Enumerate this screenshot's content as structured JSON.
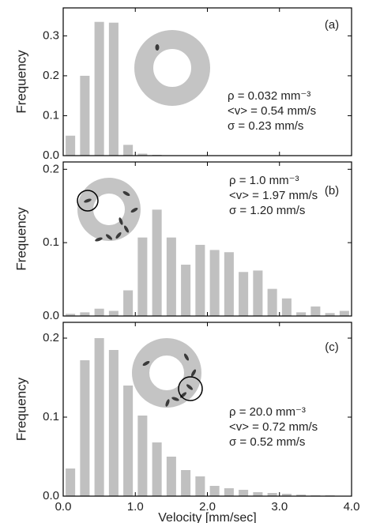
{
  "chart_data": [
    {
      "type": "histogram",
      "panel_label": "(a)",
      "ylabel": "Frequency",
      "annotations": [
        "ρ = 0.032  mm⁻³",
        "<v> = 0.54 mm/s",
        "σ = 0.23 mm/s"
      ],
      "bins": [
        0,
        0.2,
        0.4,
        0.6,
        0.8,
        1.0,
        1.2,
        1.4,
        1.6,
        1.8,
        2.0,
        2.2,
        2.4,
        2.6,
        2.8,
        3.0,
        3.2,
        3.4,
        3.6,
        3.8,
        4.0
      ],
      "values": [
        0.05,
        0.2,
        0.335,
        0.333,
        0.027,
        0.005,
        0.002,
        0,
        0,
        0,
        0,
        0,
        0,
        0,
        0,
        0,
        0,
        0,
        0,
        0
      ],
      "color": "#c0c0c0",
      "xlim": [
        0,
        4.0
      ],
      "xticks": [
        {
          "value": 0,
          "label": "0.0"
        },
        {
          "value": 1,
          "label": "1.0"
        },
        {
          "value": 2,
          "label": "2.0"
        },
        {
          "value": 3,
          "label": "3.0"
        },
        {
          "value": 4,
          "label": "4.0"
        }
      ],
      "ylim": [
        0,
        0.37
      ],
      "yticks": [
        {
          "value": 0,
          "label": "0.0"
        },
        0.1,
        0.2,
        0.3
      ]
    },
    {
      "type": "histogram",
      "panel_label": "(b)",
      "ylabel": "Frequency",
      "annotations": [
        "ρ = 1.0  mm⁻³",
        "<v> = 1.97 mm/s",
        "σ = 1.20 mm/s"
      ],
      "bins": [
        0,
        0.2,
        0.4,
        0.6,
        0.8,
        1.0,
        1.2,
        1.4,
        1.6,
        1.8,
        2.0,
        2.2,
        2.4,
        2.6,
        2.8,
        3.0,
        3.2,
        3.4,
        3.6,
        3.8,
        4.0
      ],
      "values": [
        0.003,
        0.005,
        0.01,
        0.007,
        0.035,
        0.107,
        0.145,
        0.107,
        0.07,
        0.097,
        0.09,
        0.087,
        0.06,
        0.062,
        0.037,
        0.024,
        0.005,
        0.013,
        0.004,
        0.007
      ],
      "color": "#c0c0c0",
      "xlim": [
        0,
        4.0
      ],
      "xticks": [
        {
          "value": 0,
          "label": "0.0"
        },
        {
          "value": 1,
          "label": "1.0"
        },
        {
          "value": 2,
          "label": "2.0"
        },
        {
          "value": 3,
          "label": "3.0"
        },
        {
          "value": 4,
          "label": "4.0"
        }
      ],
      "ylim": [
        0,
        0.21
      ],
      "yticks": [
        {
          "value": 0,
          "label": "0.0"
        },
        0.1,
        0.2
      ]
    },
    {
      "type": "histogram",
      "panel_label": "(c)",
      "ylabel": "Frequency",
      "xlabel": "Velocity [mm/sec]",
      "annotations": [
        "ρ = 20.0  mm⁻³",
        "<v> = 0.72 mm/s",
        "σ = 0.52 mm/s"
      ],
      "bins": [
        0,
        0.2,
        0.4,
        0.6,
        0.8,
        1.0,
        1.2,
        1.4,
        1.6,
        1.8,
        2.0,
        2.2,
        2.4,
        2.6,
        2.8,
        3.0,
        3.2,
        3.4,
        3.6,
        3.8,
        4.0
      ],
      "values": [
        0.035,
        0.172,
        0.2,
        0.185,
        0.14,
        0.102,
        0.068,
        0.05,
        0.033,
        0.025,
        0.013,
        0.01,
        0.008,
        0.005,
        0.004,
        0.003,
        0.002,
        0.001,
        0.001,
        0
      ],
      "color": "#c0c0c0",
      "xlim": [
        0,
        4.0
      ],
      "xticks": [
        {
          "value": 0,
          "label": "0.0"
        },
        {
          "value": 1,
          "label": "1.0"
        },
        {
          "value": 2,
          "label": "2.0"
        },
        {
          "value": 3,
          "label": "3.0"
        },
        {
          "value": 4,
          "label": "4.0"
        }
      ],
      "ylim": [
        0,
        0.22
      ],
      "yticks": [
        {
          "value": 0,
          "label": "0.0"
        },
        0.1,
        0.2
      ]
    }
  ]
}
